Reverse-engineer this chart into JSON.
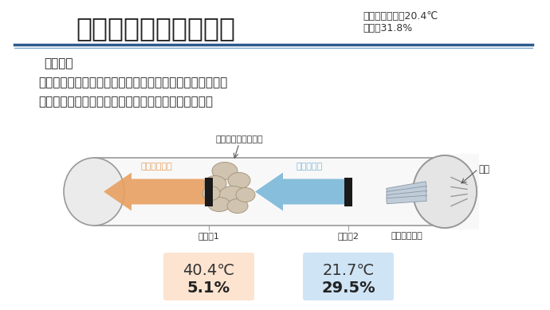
{
  "title": "除湿・発熱能力の評価",
  "title_fontsize": 24,
  "subtitle": "実験日の温度は20.4℃\n湿度は31.8%",
  "subtitle_fontsize": 9,
  "bg_color": "#ffffff",
  "result_header": "【結果】",
  "bullet1": "・ハスクレイが空気中の水分を取り込んだことで除湿した",
  "bullet2": "・少量のハスクレイでも、空気を温めることができた",
  "box1_label": "温度計1",
  "box2_label": "温度計2",
  "box3_label": "濡らした雑巾",
  "box1_temp": "40.4℃",
  "box1_hum": "5.1%",
  "box2_temp": "21.7℃",
  "box2_hum": "29.5%",
  "box1_color": "#fce4d0",
  "box2_color": "#cfe4f5",
  "diagram_label_hasclay": "蓄熱したハスクレイ",
  "diagram_label_dry": "乾燥した空気",
  "diagram_label_humid": "湿った空気",
  "diagram_label_air": "空気",
  "arrow_dry_color": "#e8a060",
  "arrow_humid_color": "#7ab8d8",
  "tube_fill": "#f8f8f8",
  "tube_edge_color": "#999999",
  "line_color1": "#2d5a8e",
  "line_color2": "#6a9ccc"
}
